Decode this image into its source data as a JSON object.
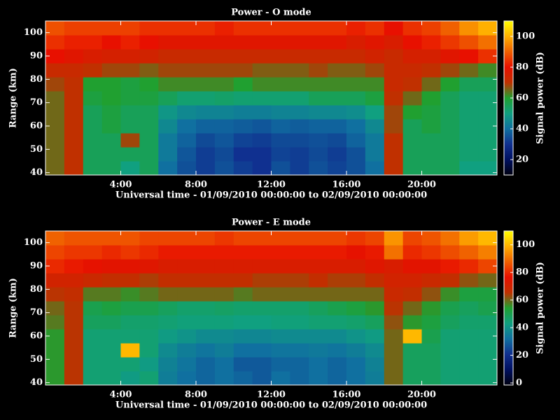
{
  "chart_data": [
    {
      "type": "heatmap",
      "title": "Power - O mode",
      "xlabel": "Universal time - 01/09/2010 00:00:00 to 02/09/2010 00:00:00",
      "ylabel": "Range (km)",
      "colorbar_label": "Signal power (dB)",
      "x": [
        0.5,
        1.5,
        2.5,
        3.5,
        4.5,
        5.5,
        6.5,
        7.5,
        8.5,
        9.5,
        10.5,
        11.5,
        12.5,
        13.5,
        14.5,
        15.5,
        16.5,
        17.5,
        18.5,
        19.5,
        20.5,
        21.5,
        22.5,
        23.5
      ],
      "y": [
        42,
        48,
        54,
        60,
        66,
        72,
        78,
        84,
        90,
        96,
        102
      ],
      "values": [
        [
          65,
          70,
          55,
          55,
          50,
          55,
          40,
          35,
          32,
          35,
          32,
          30,
          35,
          32,
          35,
          33,
          35,
          40,
          70,
          55,
          55,
          55,
          50,
          50
        ],
        [
          65,
          70,
          55,
          55,
          55,
          55,
          42,
          36,
          32,
          34,
          30,
          30,
          33,
          32,
          34,
          32,
          35,
          42,
          70,
          55,
          55,
          55,
          52,
          52
        ],
        [
          65,
          70,
          55,
          55,
          68,
          55,
          42,
          38,
          34,
          36,
          33,
          32,
          34,
          34,
          35,
          34,
          38,
          42,
          70,
          55,
          55,
          55,
          52,
          52
        ],
        [
          65,
          70,
          55,
          58,
          55,
          55,
          45,
          40,
          38,
          38,
          37,
          36,
          38,
          37,
          38,
          38,
          40,
          45,
          68,
          55,
          58,
          55,
          52,
          52
        ],
        [
          65,
          70,
          55,
          58,
          55,
          55,
          48,
          45,
          44,
          44,
          43,
          43,
          44,
          44,
          45,
          45,
          46,
          50,
          68,
          60,
          58,
          55,
          52,
          52
        ],
        [
          65,
          70,
          58,
          60,
          58,
          58,
          55,
          52,
          52,
          53,
          52,
          52,
          52,
          52,
          55,
          55,
          55,
          58,
          70,
          65,
          60,
          55,
          52,
          52
        ],
        [
          68,
          70,
          60,
          60,
          58,
          60,
          62,
          62,
          62,
          62,
          60,
          62,
          62,
          62,
          62,
          62,
          62,
          62,
          72,
          70,
          65,
          60,
          55,
          55
        ],
        [
          72,
          72,
          70,
          68,
          68,
          66,
          68,
          68,
          68,
          68,
          68,
          66,
          66,
          66,
          68,
          66,
          66,
          68,
          72,
          72,
          70,
          68,
          65,
          62
        ],
        [
          80,
          78,
          76,
          75,
          75,
          74,
          72,
          72,
          72,
          72,
          72,
          72,
          72,
          72,
          72,
          72,
          72,
          74,
          72,
          75,
          75,
          78,
          80,
          84
        ],
        [
          84,
          82,
          82,
          80,
          82,
          80,
          78,
          78,
          78,
          78,
          78,
          78,
          78,
          78,
          78,
          78,
          76,
          78,
          76,
          80,
          82,
          85,
          88,
          92
        ],
        [
          88,
          86,
          86,
          86,
          86,
          84,
          84,
          84,
          84,
          82,
          84,
          84,
          84,
          84,
          84,
          84,
          82,
          84,
          80,
          84,
          86,
          90,
          96,
          100
        ]
      ],
      "xlim": [
        0,
        24
      ],
      "ylim": [
        39,
        105
      ],
      "clim": [
        10,
        110
      ],
      "xticks": [
        {
          "value": 4,
          "label": "4:00"
        },
        {
          "value": 8,
          "label": "8:00"
        },
        {
          "value": 12,
          "label": "12:00"
        },
        {
          "value": 16,
          "label": "16:00"
        },
        {
          "value": 20,
          "label": "20:00"
        }
      ],
      "yticks": [
        40,
        50,
        60,
        70,
        80,
        90,
        100
      ],
      "cticks": [
        20,
        40,
        60,
        80,
        100
      ],
      "colormap": [
        "#000010",
        "#001060",
        "#103090",
        "#1070a0",
        "#10a080",
        "#20a030",
        "#c03000",
        "#e81000",
        "#f06000",
        "#ffb000",
        "#ffff00"
      ]
    },
    {
      "type": "heatmap",
      "title": "Power - E mode",
      "xlabel": "Universal time - 01/09/2010 00:00:00 to 02/09/2010 00:00:00",
      "ylabel": "Range (km)",
      "colorbar_label": "Signal power (dB)",
      "x": [
        0.5,
        1.5,
        2.5,
        3.5,
        4.5,
        5.5,
        6.5,
        7.5,
        8.5,
        9.5,
        10.5,
        11.5,
        12.5,
        13.5,
        14.5,
        15.5,
        16.5,
        17.5,
        18.5,
        19.5,
        20.5,
        21.5,
        22.5,
        23.5
      ],
      "y": [
        42,
        48,
        54,
        60,
        66,
        72,
        78,
        84,
        90,
        96,
        102
      ],
      "values": [
        [
          55,
          65,
          45,
          45,
          42,
          45,
          35,
          32,
          30,
          32,
          30,
          28,
          32,
          30,
          32,
          30,
          32,
          35,
          60,
          48,
          48,
          45,
          45,
          45
        ],
        [
          55,
          65,
          45,
          45,
          45,
          42,
          36,
          33,
          30,
          32,
          28,
          28,
          30,
          30,
          32,
          30,
          32,
          36,
          60,
          48,
          48,
          45,
          45,
          45
        ],
        [
          55,
          65,
          45,
          45,
          100,
          45,
          38,
          35,
          33,
          35,
          32,
          32,
          33,
          33,
          34,
          33,
          35,
          38,
          60,
          48,
          48,
          45,
          45,
          45
        ],
        [
          55,
          65,
          45,
          45,
          45,
          45,
          42,
          40,
          38,
          38,
          37,
          37,
          38,
          38,
          38,
          38,
          40,
          42,
          60,
          100,
          50,
          45,
          45,
          45
        ],
        [
          58,
          65,
          48,
          48,
          46,
          46,
          45,
          44,
          44,
          44,
          43,
          43,
          44,
          44,
          45,
          45,
          46,
          48,
          62,
          55,
          52,
          48,
          46,
          46
        ],
        [
          60,
          65,
          50,
          52,
          50,
          50,
          48,
          46,
          46,
          47,
          46,
          46,
          46,
          46,
          48,
          50,
          52,
          55,
          65,
          60,
          55,
          50,
          48,
          50
        ],
        [
          65,
          66,
          58,
          58,
          56,
          58,
          60,
          60,
          60,
          60,
          58,
          60,
          60,
          60,
          60,
          60,
          60,
          60,
          68,
          66,
          62,
          56,
          52,
          52
        ],
        [
          70,
          70,
          68,
          66,
          66,
          64,
          66,
          66,
          66,
          66,
          66,
          64,
          64,
          64,
          66,
          64,
          64,
          66,
          70,
          70,
          68,
          66,
          62,
          60
        ],
        [
          80,
          78,
          76,
          75,
          75,
          74,
          72,
          72,
          72,
          72,
          72,
          72,
          72,
          72,
          72,
          72,
          72,
          74,
          72,
          75,
          75,
          78,
          80,
          84
        ],
        [
          84,
          82,
          82,
          80,
          82,
          80,
          78,
          78,
          78,
          78,
          78,
          78,
          78,
          78,
          78,
          78,
          76,
          78,
          90,
          80,
          82,
          85,
          88,
          92
        ],
        [
          88,
          86,
          86,
          86,
          86,
          84,
          84,
          84,
          84,
          82,
          84,
          84,
          84,
          84,
          84,
          84,
          82,
          84,
          95,
          84,
          86,
          90,
          96,
          100
        ]
      ],
      "xlim": [
        0,
        24
      ],
      "ylim": [
        39,
        105
      ],
      "clim": [
        -1.5,
        110
      ],
      "xticks": [
        {
          "value": 4,
          "label": "4:00"
        },
        {
          "value": 8,
          "label": "8:00"
        },
        {
          "value": 12,
          "label": "12:00"
        },
        {
          "value": 16,
          "label": "16:00"
        },
        {
          "value": 20,
          "label": "20:00"
        }
      ],
      "yticks": [
        40,
        50,
        60,
        70,
        80,
        90,
        100
      ],
      "cticks": [
        0,
        20,
        40,
        60,
        80,
        100
      ],
      "colormap": [
        "#000010",
        "#001060",
        "#103090",
        "#1070a0",
        "#10a080",
        "#20a030",
        "#c03000",
        "#e81000",
        "#f06000",
        "#ffb000",
        "#ffff00"
      ]
    }
  ]
}
